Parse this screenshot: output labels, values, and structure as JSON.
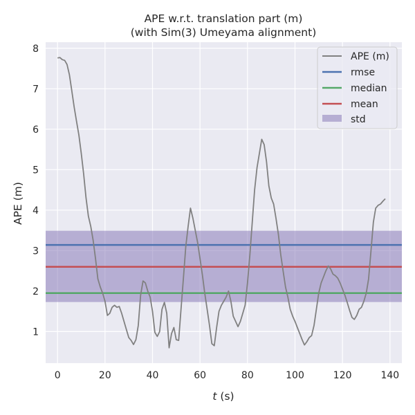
{
  "chart_data": {
    "type": "line",
    "title": [
      "APE w.r.t. translation part (m)",
      "(with Sim(3) Umeyama alignment)"
    ],
    "xlabel_var": "t",
    "xlabel_unit": " (s)",
    "ylabel": "APE (m)",
    "xlim": [
      -5,
      145
    ],
    "ylim": [
      0.22,
      8.15
    ],
    "xticks": [
      0,
      20,
      40,
      60,
      80,
      100,
      120,
      140
    ],
    "yticks": [
      1,
      2,
      3,
      4,
      5,
      6,
      7,
      8
    ],
    "grid": true,
    "legend_position": "top-right",
    "series": [
      {
        "name": "APE (m)",
        "color": "#808080",
        "x": [
          0,
          1,
          2,
          3,
          4,
          5,
          6,
          7,
          8,
          9,
          10,
          11,
          12,
          13,
          14,
          15,
          16,
          17,
          18,
          19,
          20,
          21,
          22,
          23,
          24,
          25,
          26,
          27,
          28,
          29,
          30,
          31,
          32,
          33,
          34,
          35,
          36,
          37,
          38,
          39,
          40,
          41,
          42,
          43,
          44,
          45,
          46,
          47,
          48,
          49,
          50,
          51,
          52,
          53,
          54,
          55,
          56,
          57,
          58,
          59,
          60,
          61,
          62,
          63,
          64,
          65,
          66,
          67,
          68,
          69,
          70,
          71,
          72,
          73,
          74,
          75,
          76,
          77,
          78,
          79,
          80,
          81,
          82,
          83,
          84,
          85,
          86,
          87,
          88,
          89,
          90,
          91,
          92,
          93,
          94,
          95,
          96,
          97,
          98,
          99,
          100,
          101,
          102,
          103,
          104,
          105,
          106,
          107,
          108,
          109,
          110,
          111,
          112,
          113,
          114,
          115,
          116,
          117,
          118,
          119,
          120,
          121,
          122,
          123,
          124,
          125,
          126,
          127,
          128,
          129,
          130,
          131,
          132,
          133,
          134,
          135,
          136,
          137,
          138
        ],
        "values": [
          7.76,
          7.77,
          7.72,
          7.7,
          7.6,
          7.35,
          6.95,
          6.55,
          6.2,
          5.85,
          5.4,
          4.9,
          4.3,
          3.85,
          3.6,
          3.25,
          2.8,
          2.3,
          2.1,
          1.95,
          1.75,
          1.4,
          1.45,
          1.6,
          1.65,
          1.6,
          1.62,
          1.45,
          1.25,
          1.05,
          0.85,
          0.78,
          0.68,
          0.8,
          1.15,
          1.9,
          2.25,
          2.2,
          2.0,
          1.85,
          1.5,
          0.98,
          0.88,
          1.0,
          1.55,
          1.72,
          1.45,
          0.6,
          0.95,
          1.1,
          0.8,
          0.78,
          1.55,
          2.3,
          3.1,
          3.6,
          4.05,
          3.8,
          3.5,
          3.2,
          2.8,
          2.4,
          1.95,
          1.55,
          1.15,
          0.7,
          0.65,
          1.1,
          1.5,
          1.65,
          1.75,
          1.85,
          2.0,
          1.75,
          1.38,
          1.25,
          1.12,
          1.25,
          1.45,
          1.65,
          2.2,
          2.9,
          3.7,
          4.5,
          5.05,
          5.4,
          5.75,
          5.62,
          5.2,
          4.6,
          4.3,
          4.15,
          3.8,
          3.4,
          2.9,
          2.5,
          2.1,
          1.85,
          1.55,
          1.38,
          1.25,
          1.1,
          0.95,
          0.8,
          0.67,
          0.75,
          0.85,
          0.9,
          1.15,
          1.55,
          1.95,
          2.2,
          2.35,
          2.5,
          2.62,
          2.55,
          2.42,
          2.38,
          2.32,
          2.2,
          2.05,
          1.9,
          1.72,
          1.52,
          1.35,
          1.3,
          1.4,
          1.55,
          1.6,
          1.75,
          1.95,
          2.3,
          3.0,
          3.7,
          4.05,
          4.12,
          4.15,
          4.22,
          4.28
        ]
      },
      {
        "name": "rmse",
        "color": "#4c72b0",
        "value": 3.14
      },
      {
        "name": "median",
        "color": "#55a868",
        "value": 1.95
      },
      {
        "name": "mean",
        "color": "#c44e52",
        "value": 2.6
      },
      {
        "name": "std",
        "color": "#8172b3",
        "range": [
          1.73,
          3.49
        ]
      }
    ]
  }
}
